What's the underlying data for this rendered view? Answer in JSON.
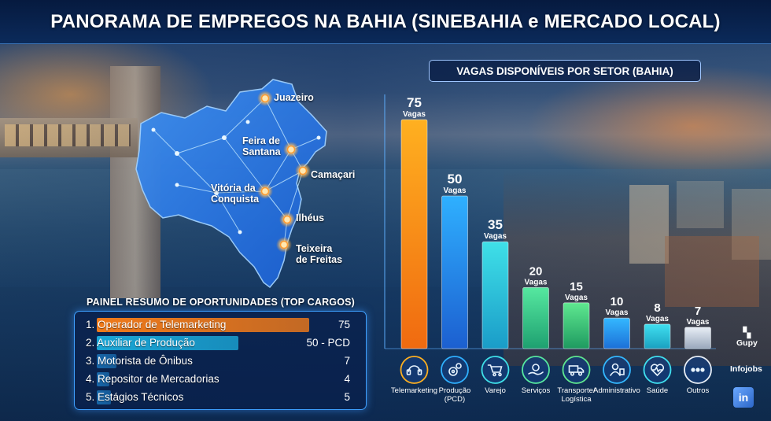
{
  "title": "PANORAMA DE EMPREGOS NA BAHIA (SINEBAHIA e MERCADO LOCAL)",
  "map": {
    "cities": [
      {
        "name": "Juazeiro"
      },
      {
        "name": "Feira de\nSantana"
      },
      {
        "name": "Camaçari"
      },
      {
        "name": "Vitória da\nConquista"
      },
      {
        "name": "Ilhéus"
      },
      {
        "name": "Teixeira\nde Freitas"
      }
    ]
  },
  "summary": {
    "title": "PAINEL RESUMO DE OPORTUNIDADES (TOP CARGOS)",
    "items": [
      {
        "rank": "1.",
        "role": "Operador de Telemarketing",
        "value": "75",
        "level": 75,
        "color": "#f07a1a"
      },
      {
        "rank": "2.",
        "role": "Auxiliar de Produção",
        "value": "50 - PCD",
        "level": 50,
        "color": "#1aa6d6"
      },
      {
        "rank": "3.",
        "role": "Motorista de Ônibus",
        "value": "7",
        "level": 7,
        "color": "#1c7ec8"
      },
      {
        "rank": "4.",
        "role": "Repositor de Mercadorias",
        "value": "4",
        "level": 4,
        "color": "#1c7ec8"
      },
      {
        "rank": "5.",
        "role": "Estágios Técnicos",
        "value": "5",
        "level": 5,
        "color": "#1c7ec8"
      }
    ]
  },
  "chart_data": {
    "type": "bar",
    "title": "VAGAS DISPONÍVEIS POR SETOR (BAHIA)",
    "categories": [
      "Telemarketing",
      "Produção\n(PCD)",
      "Varejo",
      "Serviços",
      "Transporte/\nLogística",
      "Administrativo",
      "Saúde",
      "Outros"
    ],
    "values": [
      75,
      50,
      35,
      20,
      15,
      10,
      8,
      7
    ],
    "value_suffix": "Vagas",
    "ylim": [
      0,
      75
    ],
    "icons": [
      "headset-icon",
      "gears-icon",
      "cart-icon",
      "hand-gear-icon",
      "truck-icon",
      "admin-person-icon",
      "heart-pulse-icon",
      "more-icon"
    ],
    "bar_colors": [
      [
        "#ffb020",
        "#f06a10"
      ],
      [
        "#2fb0ff",
        "#1c5fd0"
      ],
      [
        "#3fe0e8",
        "#1a9cc8"
      ],
      [
        "#56e8a0",
        "#1ea070"
      ],
      [
        "#5fe890",
        "#1e9a60"
      ],
      [
        "#34b8ff",
        "#1c70d8"
      ],
      [
        "#40e0f0",
        "#1aa0c0"
      ],
      [
        "#e8eef6",
        "#9aa8bc"
      ]
    ]
  },
  "sources": [
    {
      "label": "Gupy",
      "icon": "gupy-icon"
    },
    {
      "label": "Infojobs",
      "icon": "sparkle-icon"
    },
    {
      "label": "in",
      "icon": "linkedin-icon"
    }
  ]
}
